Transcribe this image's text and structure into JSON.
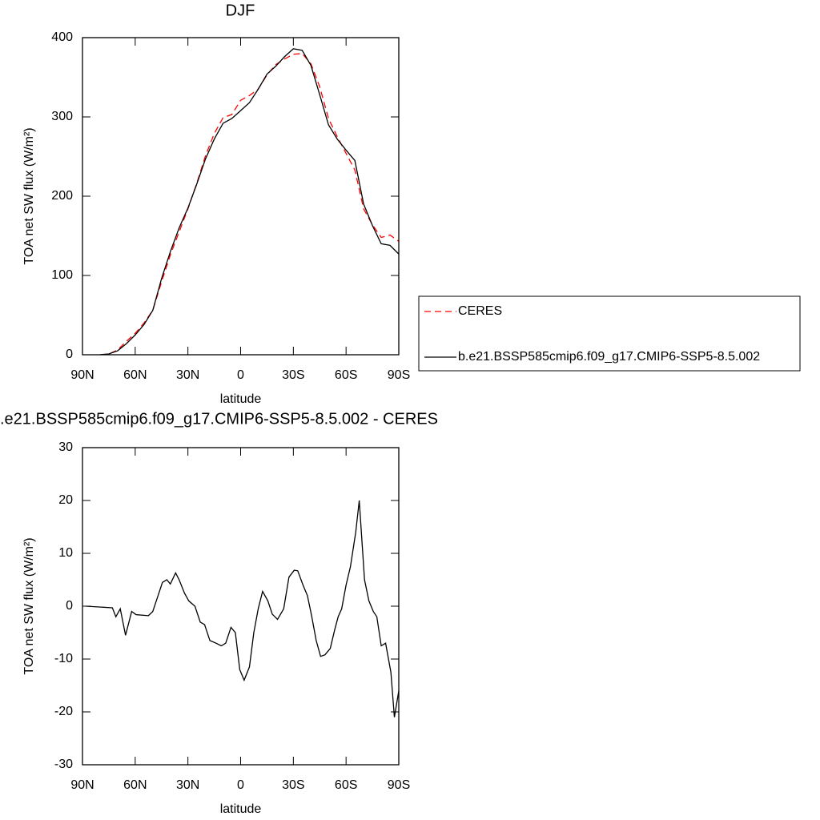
{
  "chart_data": [
    {
      "type": "line",
      "title": "DJF",
      "xlabel": "latitude",
      "ylabel": "TOA net SW flux (W/m²)",
      "x": [
        80,
        75,
        70,
        65,
        60,
        55,
        50,
        45,
        40,
        35,
        30,
        25,
        20,
        15,
        10,
        5,
        0,
        -5,
        -10,
        -15,
        -20,
        -25,
        -30,
        -35,
        -40,
        -45,
        -50,
        -55,
        -60,
        -65,
        -70,
        -75,
        -80,
        -85,
        -90
      ],
      "xlim": [
        90,
        -90
      ],
      "xticks": [
        {
          "value": 90,
          "label": "90N"
        },
        {
          "value": 60,
          "label": "60N"
        },
        {
          "value": 30,
          "label": "30N"
        },
        0,
        {
          "value": -30,
          "label": "30S"
        },
        {
          "value": -60,
          "label": "60S"
        },
        {
          "value": -90,
          "label": "90S"
        }
      ],
      "ylim": [
        0,
        400
      ],
      "yticks": [
        0,
        100,
        200,
        300,
        400
      ],
      "legend": "right",
      "series": [
        {
          "name": "CERES",
          "color": "#ff0000",
          "linestyle": "dashed",
          "values": [
            0,
            1,
            6,
            17,
            27,
            40,
            56,
            92,
            126,
            155,
            184,
            216,
            251,
            279,
            299,
            303,
            321,
            327,
            335,
            353,
            366,
            373,
            379,
            380,
            367,
            338,
            298,
            275,
            254,
            233,
            184,
            164,
            148,
            151,
            143
          ]
        },
        {
          "name": "b.e21.BSSP585cmip6.f09_g17.CMIP6-SSP5-8.5.002",
          "color": "#000000",
          "linestyle": "solid",
          "values": [
            0,
            1,
            5,
            14,
            25,
            38,
            56,
            96,
            130,
            160,
            185,
            215,
            247,
            272,
            292,
            298,
            308,
            318,
            335,
            354,
            364,
            376,
            386,
            384,
            365,
            328,
            290,
            272,
            258,
            245,
            190,
            163,
            140,
            138,
            127
          ]
        }
      ]
    },
    {
      "type": "line",
      "title": ".e21.BSSP585cmip6.f09_g17.CMIP6-SSP5-8.5.002 - CERES",
      "xlabel": "latitude",
      "ylabel": "TOA net SW flux (W/m²)",
      "x": [
        88,
        73,
        71,
        68.5,
        65.5,
        62,
        59.5,
        52.5,
        50,
        47,
        44.5,
        42,
        40,
        37,
        35,
        32,
        29.5,
        26,
        23,
        20.5,
        17.5,
        14,
        11,
        8.5,
        5.5,
        3,
        0.5,
        -2,
        -5,
        -7.5,
        -10,
        -12.5,
        -15.5,
        -18,
        -21,
        -24.5,
        -27.5,
        -30.5,
        -32.5,
        -35.5,
        -38,
        -40.5,
        -43,
        -45.5,
        -48,
        -51,
        -53.5,
        -55.5,
        -57.5,
        -60,
        -62.5,
        -65.5,
        -67.5,
        -70.5,
        -73,
        -75.5,
        -77.5,
        -80,
        -82.5,
        -85.5,
        -87.5,
        -90
      ],
      "values": [
        0,
        -0.3,
        -2,
        -0.5,
        -5.5,
        -1,
        -1.6,
        -1.8,
        -1,
        2,
        4.5,
        5,
        4.2,
        6.3,
        5,
        2.5,
        1,
        0,
        -3,
        -3.5,
        -6.5,
        -7,
        -7.5,
        -7,
        -4,
        -5,
        -12,
        -14,
        -11.5,
        -5,
        -0.5,
        2.8,
        1,
        -1.5,
        -2.5,
        -0.5,
        5.5,
        6.8,
        6.7,
        4,
        2,
        -2,
        -6.5,
        -9.5,
        -9.2,
        -8,
        -4.5,
        -2,
        -0.5,
        4,
        7.5,
        14,
        20,
        5,
        1,
        -1,
        -2,
        -7.5,
        -7,
        -12.5,
        -21,
        -16
      ],
      "color": "#000000",
      "xlim": [
        90,
        -90
      ],
      "xticks": [
        {
          "value": 90,
          "label": "90N"
        },
        {
          "value": 60,
          "label": "60N"
        },
        {
          "value": 30,
          "label": "30N"
        },
        0,
        {
          "value": -30,
          "label": "30S"
        },
        {
          "value": -60,
          "label": "60S"
        },
        {
          "value": -90,
          "label": "90S"
        }
      ],
      "ylim": [
        -30,
        30
      ],
      "yticks": [
        -30,
        -20,
        -10,
        0,
        10,
        20,
        30
      ]
    }
  ]
}
